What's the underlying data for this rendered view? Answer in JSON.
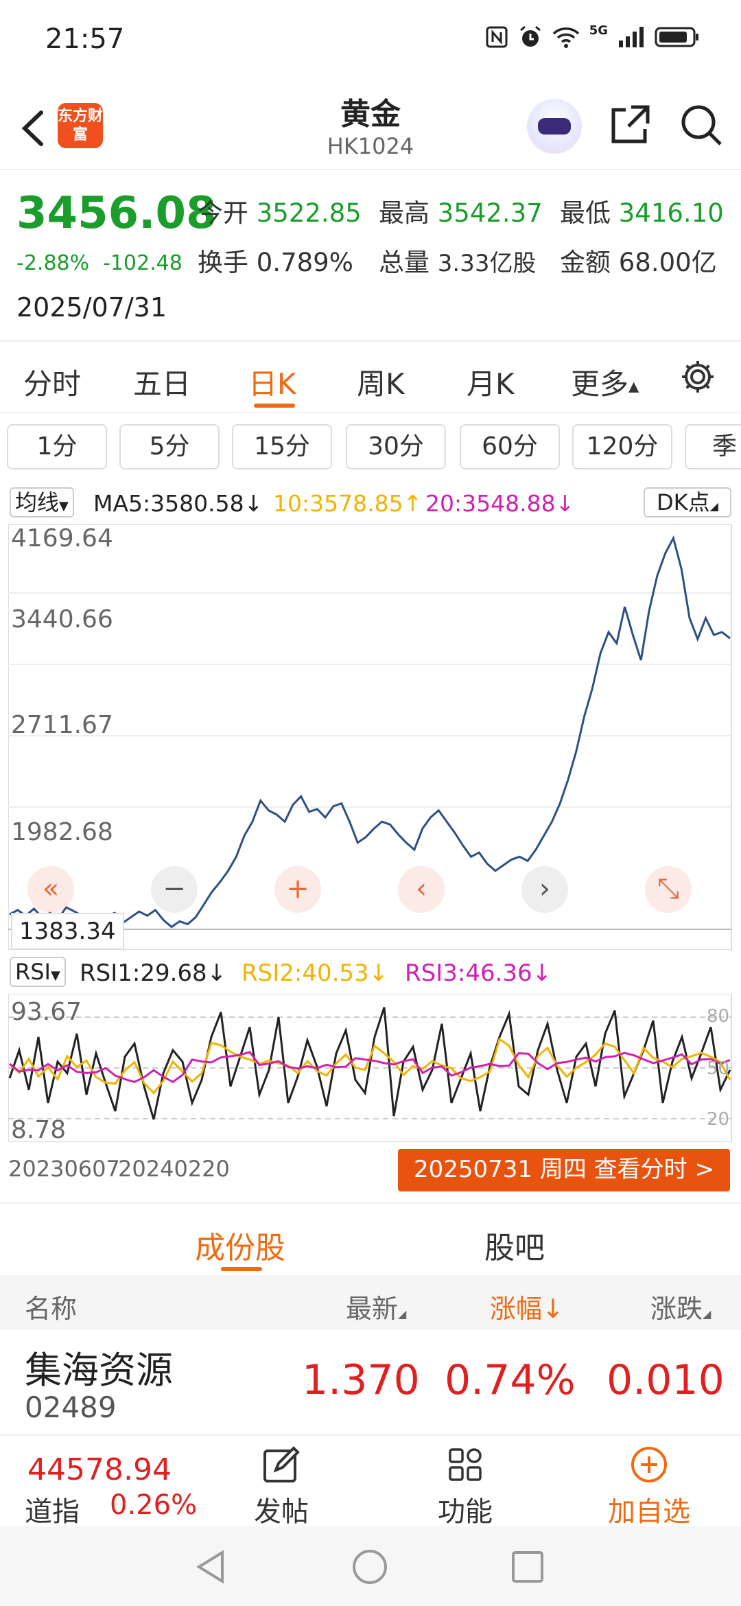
{
  "status": {
    "time": "21:57",
    "net": "5G"
  },
  "header": {
    "title": "黄金",
    "code": "HK1024",
    "logo_text": "东方财富"
  },
  "quote": {
    "price": "3456.08",
    "change_pct": "-2.88%",
    "change_abs": "-102.48",
    "date": "2025/07/31",
    "open_label": "今开",
    "open": "3522.85",
    "high_label": "最高",
    "high": "3542.37",
    "low_label": "最低",
    "low": "3416.10",
    "turnover_label": "换手",
    "turnover": "0.789%",
    "volume_label": "总量",
    "volume": "3.33亿股",
    "amount_label": "金额",
    "amount": "68.00亿"
  },
  "tabs": [
    "分时",
    "五日",
    "日K",
    "周K",
    "月K",
    "更多"
  ],
  "active_tab": "日K",
  "intervals": [
    "1分",
    "5分",
    "15分",
    "30分",
    "60分",
    "120分",
    "季"
  ],
  "ma": {
    "label": "均线",
    "ma5": "MA5:3580.58↓",
    "ma10": "10:3578.85↑",
    "ma20": "20:3548.88↓",
    "dk": "DK点",
    "colors": {
      "ma5": "#222222",
      "ma10": "#f0b400",
      "ma20": "#d020b0"
    }
  },
  "main_chart": {
    "y_labels": [
      "4169.64",
      "3440.66",
      "2711.67",
      "1982.68"
    ],
    "low_label": "1383.34",
    "line_color": "#2c4f86"
  },
  "rsi": {
    "label": "RSI",
    "rsi1": "RSI1:29.68↓",
    "rsi2": "RSI2:40.53↓",
    "rsi3": "RSI3:46.36↓",
    "y_top": "93.67",
    "y_bottom": "8.78",
    "r80": "80",
    "r50": "50",
    "r20": "20"
  },
  "x_labels": [
    "20230607",
    "20240220"
  ],
  "view_button": "20250731 周四 查看分时 >",
  "subtabs": [
    "成份股",
    "股吧"
  ],
  "table": {
    "headers": {
      "name": "名称",
      "latest": "最新",
      "pct": "涨幅↓",
      "chg": "涨跌"
    },
    "rows": [
      {
        "name": "集海资源",
        "code": "02489",
        "latest": "1.370",
        "pct": "0.74%",
        "chg": "0.010"
      }
    ]
  },
  "footer": {
    "index_value": "44578.94",
    "index_name": "道指",
    "index_pct": "0.26%",
    "post": "发帖",
    "func": "功能",
    "add": "加自选"
  },
  "chart_data": {
    "type": "line",
    "title": "",
    "y_range": [
      1383.34,
      4169.64
    ],
    "x_ticks": [
      "20230607",
      "20240220"
    ],
    "series": [
      {
        "values": [
          1490,
          1520,
          1480,
          1530,
          1470,
          1500,
          1460,
          1540,
          1510,
          1480,
          1470,
          1450,
          1480,
          1500,
          1430,
          1470,
          1510,
          1480,
          1520,
          1450,
          1400,
          1440,
          1420,
          1470,
          1560,
          1650,
          1720,
          1800,
          1900,
          2050,
          2150,
          2300,
          2230,
          2200,
          2150,
          2270,
          2330,
          2220,
          2240,
          2180,
          2260,
          2280,
          2150,
          2000,
          2040,
          2100,
          2150,
          2130,
          2060,
          2000,
          1950,
          2100,
          2180,
          2230,
          2150,
          2070,
          1980,
          1900,
          1930,
          1850,
          1800,
          1840,
          1880,
          1900,
          1870,
          1950,
          2050,
          2150,
          2280,
          2450,
          2650,
          2900,
          3100,
          3350,
          3500,
          3420,
          3680,
          3480,
          3300,
          3650,
          3900,
          4060,
          4169,
          3950,
          3600,
          3450,
          3600,
          3480,
          3500,
          3456
        ]
      }
    ]
  },
  "rsi_chart_data": {
    "type": "line",
    "y_range": [
      8.78,
      93.67
    ],
    "series": [
      {
        "values": [
          45,
          62,
          38,
          70,
          30,
          55,
          48,
          72,
          35,
          60,
          42,
          25,
          58,
          66,
          40,
          20,
          48,
          62,
          55,
          30,
          44,
          70,
          85,
          40,
          58,
          76,
          35,
          50,
          82,
          30,
          46,
          68,
          52,
          28,
          60,
          74,
          44,
          36,
          70,
          88,
          22,
          55,
          64,
          38,
          50,
          78,
          30,
          45,
          60,
          25,
          52,
          70,
          84,
          40,
          35,
          62,
          78,
          50,
          30,
          58,
          66,
          40,
          72,
          86,
          34,
          48,
          62,
          80,
          30,
          55,
          70,
          45,
          60,
          76,
          38,
          50
        ]
      }
    ]
  }
}
